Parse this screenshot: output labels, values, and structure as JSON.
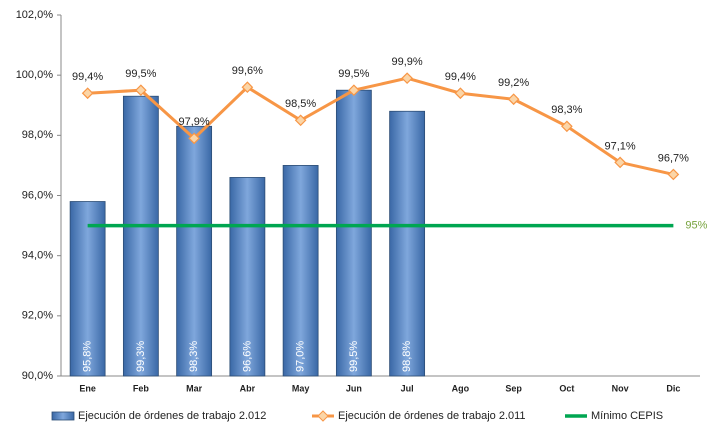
{
  "chart_data": {
    "type": "bar",
    "categories": [
      "Ene",
      "Feb",
      "Mar",
      "Abr",
      "May",
      "Jun",
      "Jul",
      "Ago",
      "Sep",
      "Oct",
      "Nov",
      "Dic"
    ],
    "series": [
      {
        "name": "Ejecución de órdenes de trabajo 2.012",
        "type": "bar",
        "color": "#4f81bd",
        "values": [
          95.8,
          99.3,
          98.3,
          96.6,
          97.0,
          99.5,
          98.8,
          null,
          null,
          null,
          null,
          null
        ],
        "value_labels": [
          "95,8%",
          "99,3%",
          "98,3%",
          "96,6%",
          "97,0%",
          "99,5%",
          "98,8%",
          null,
          null,
          null,
          null,
          null
        ]
      },
      {
        "name": "Ejecución de órdenes de trabajo 2.011",
        "type": "line",
        "color": "#f79646",
        "values": [
          99.4,
          99.5,
          97.9,
          99.6,
          98.5,
          99.5,
          99.9,
          99.4,
          99.2,
          98.3,
          97.1,
          96.7
        ],
        "value_labels": [
          "99,4%",
          "99,5%",
          "97,9%",
          "99,6%",
          "98,5%",
          "99,5%",
          "99,9%",
          "99,4%",
          "99,2%",
          "98,3%",
          "97,1%",
          "96,7%"
        ]
      },
      {
        "name": "Mínimo CEPIS",
        "type": "hline",
        "color": "#00a651",
        "value": 95,
        "value_label": "95%",
        "label_color": "#77a33d"
      }
    ],
    "ylim": [
      90,
      102
    ],
    "yticks": [
      {
        "value": 90,
        "label": "90,0%"
      },
      {
        "value": 92,
        "label": "92,0%"
      },
      {
        "value": 94,
        "label": "94,0%"
      },
      {
        "value": 96,
        "label": "96,0%"
      },
      {
        "value": 98,
        "label": "98,0%"
      },
      {
        "value": 100,
        "label": "100,0%"
      },
      {
        "value": 102,
        "label": "102,0%"
      }
    ],
    "grid": false,
    "legend": "bottom"
  }
}
